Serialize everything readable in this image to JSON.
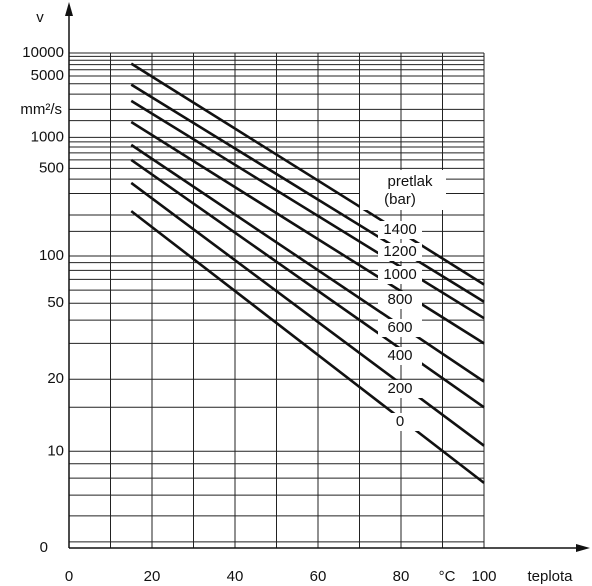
{
  "chart_data": {
    "type": "line",
    "y_label": "v",
    "y_unit": "mm²/s",
    "x_label": "teplota",
    "x_unit": "°C",
    "y_origin_label": "0",
    "legend_title": [
      "pretlak",
      "(bar)"
    ],
    "y_scale": "walther",
    "xlim": [
      0,
      100
    ],
    "ylim": [
      4.8,
      10000
    ],
    "xticks": [
      0,
      20,
      40,
      60,
      80,
      100
    ],
    "yticks": [
      10,
      20,
      50,
      100,
      500,
      1000,
      5000,
      10000
    ],
    "xgrid": [
      10,
      20,
      30,
      40,
      50,
      60,
      70,
      80,
      90,
      100
    ],
    "ygrid": [
      5,
      6,
      7,
      8,
      9,
      10,
      15,
      20,
      30,
      40,
      50,
      60,
      70,
      80,
      90,
      100,
      150,
      200,
      300,
      400,
      500,
      600,
      700,
      800,
      900,
      1000,
      1500,
      2000,
      3000,
      4000,
      5000,
      6000,
      7000,
      8000,
      9000,
      10000
    ],
    "x": [
      15,
      100
    ],
    "series": [
      {
        "name": "1400",
        "color": "#111111",
        "values": [
          7200,
          65
        ]
      },
      {
        "name": "1200",
        "color": "#111111",
        "values": [
          3900,
          51
        ]
      },
      {
        "name": "1000",
        "color": "#111111",
        "values": [
          2500,
          41
        ]
      },
      {
        "name": "800",
        "color": "#111111",
        "values": [
          1450,
          30
        ]
      },
      {
        "name": "600",
        "color": "#111111",
        "values": [
          840,
          19.5
        ]
      },
      {
        "name": "400",
        "color": "#111111",
        "values": [
          600,
          15
        ]
      },
      {
        "name": "200",
        "color": "#111111",
        "values": [
          370,
          10.5
        ]
      },
      {
        "name": "0",
        "color": "#111111",
        "values": [
          215,
          7.7
        ]
      }
    ]
  }
}
